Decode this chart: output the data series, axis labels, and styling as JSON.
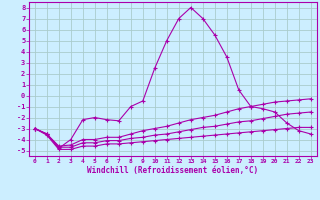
{
  "xlabel": "Windchill (Refroidissement éolien,°C)",
  "background_color": "#cceeff",
  "grid_color": "#aacccc",
  "line_color": "#aa00aa",
  "xlim": [
    -0.5,
    23.5
  ],
  "ylim": [
    -5.5,
    8.5
  ],
  "xticks": [
    0,
    1,
    2,
    3,
    4,
    5,
    6,
    7,
    8,
    9,
    10,
    11,
    12,
    13,
    14,
    15,
    16,
    17,
    18,
    19,
    20,
    21,
    22,
    23
  ],
  "yticks": [
    -5,
    -4,
    -3,
    -2,
    -1,
    0,
    1,
    2,
    3,
    4,
    5,
    6,
    7,
    8
  ],
  "series": [
    {
      "x": [
        0,
        1,
        2,
        3,
        4,
        5,
        6,
        7,
        8,
        9,
        10,
        11,
        12,
        13,
        14,
        15,
        16,
        17,
        18,
        19,
        20,
        21,
        22,
        23
      ],
      "y": [
        -3,
        -3.5,
        -4.8,
        -4,
        -2.2,
        -2,
        -2.2,
        -2.3,
        -1,
        -0.5,
        2.5,
        5,
        7,
        8,
        7,
        5.5,
        3.5,
        0.5,
        -1,
        -1.2,
        -1.5,
        -2.5,
        -3.2,
        -3.5
      ]
    },
    {
      "x": [
        0,
        1,
        2,
        3,
        4,
        5,
        6,
        7,
        8,
        9,
        10,
        11,
        12,
        13,
        14,
        15,
        16,
        17,
        18,
        19,
        20,
        21,
        22,
        23
      ],
      "y": [
        -3,
        -3.5,
        -4.6,
        -4.5,
        -4,
        -4,
        -3.8,
        -3.8,
        -3.5,
        -3.2,
        -3,
        -2.8,
        -2.5,
        -2.2,
        -2,
        -1.8,
        -1.5,
        -1.2,
        -1,
        -0.8,
        -0.6,
        -0.5,
        -0.4,
        -0.3
      ]
    },
    {
      "x": [
        0,
        1,
        2,
        3,
        4,
        5,
        6,
        7,
        8,
        9,
        10,
        11,
        12,
        13,
        14,
        15,
        16,
        17,
        18,
        19,
        20,
        21,
        22,
        23
      ],
      "y": [
        -3,
        -3.5,
        -4.7,
        -4.7,
        -4.3,
        -4.3,
        -4.1,
        -4.1,
        -3.9,
        -3.8,
        -3.6,
        -3.5,
        -3.3,
        -3.1,
        -2.9,
        -2.8,
        -2.6,
        -2.4,
        -2.3,
        -2.1,
        -1.9,
        -1.7,
        -1.6,
        -1.5
      ]
    },
    {
      "x": [
        0,
        1,
        2,
        3,
        4,
        5,
        6,
        7,
        8,
        9,
        10,
        11,
        12,
        13,
        14,
        15,
        16,
        17,
        18,
        19,
        20,
        21,
        22,
        23
      ],
      "y": [
        -3,
        -3.6,
        -4.9,
        -4.9,
        -4.6,
        -4.6,
        -4.4,
        -4.4,
        -4.3,
        -4.2,
        -4.1,
        -4.0,
        -3.9,
        -3.8,
        -3.7,
        -3.6,
        -3.5,
        -3.4,
        -3.3,
        -3.2,
        -3.1,
        -3.0,
        -2.9,
        -2.9
      ]
    }
  ]
}
